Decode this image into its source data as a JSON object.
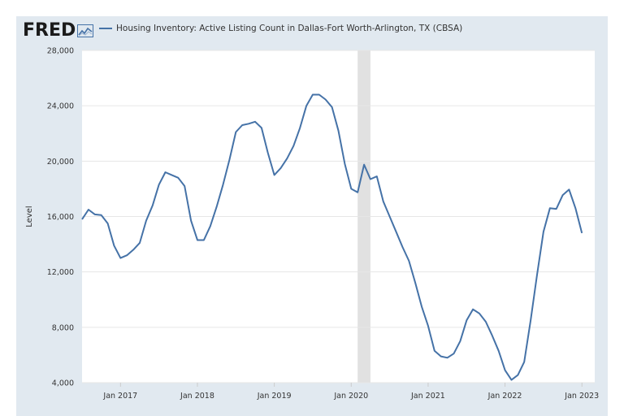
{
  "header": {
    "logo_text": "FRED",
    "logo_icon": "chart-line-icon",
    "legend_label": "Housing Inventory: Active Listing Count in Dallas-Fort Worth-Arlington, TX (CBSA)"
  },
  "colors": {
    "line": "#4572a7",
    "recession": "#e1e1e1",
    "frame": "#e1e9f0",
    "grid": "#e6e6e6"
  },
  "chart_data": {
    "type": "line",
    "title": "Housing Inventory: Active Listing Count in Dallas-Fort Worth-Arlington, TX (CBSA)",
    "xlabel": "",
    "ylabel": "Level",
    "ylim": [
      4000,
      28000
    ],
    "xlim": [
      "2016-07-01",
      "2023-03-01"
    ],
    "y_ticks": [
      "4,000",
      "8,000",
      "12,000",
      "16,000",
      "20,000",
      "24,000",
      "28,000"
    ],
    "y_tick_values": [
      4000,
      8000,
      12000,
      16000,
      20000,
      24000,
      28000
    ],
    "x_ticks": [
      {
        "date": "2017-01-01",
        "label": "Jan 2017"
      },
      {
        "date": "2018-01-01",
        "label": "Jan 2018"
      },
      {
        "date": "2019-01-01",
        "label": "Jan 2019"
      },
      {
        "date": "2020-01-01",
        "label": "Jan 2020"
      },
      {
        "date": "2021-01-01",
        "label": "Jan 2021"
      },
      {
        "date": "2022-01-01",
        "label": "Jan 2022"
      },
      {
        "date": "2023-01-01",
        "label": "Jan 2023"
      }
    ],
    "recession": {
      "start": "2020-02-01",
      "end": "2020-04-01"
    },
    "grid": true,
    "legend_position": "top",
    "series": [
      {
        "name": "Housing Inventory: Active Listing Count in Dallas-Fort Worth-Arlington, TX (CBSA)",
        "x": [
          "2016-07-01",
          "2016-08-01",
          "2016-09-01",
          "2016-10-01",
          "2016-11-01",
          "2016-12-01",
          "2017-01-01",
          "2017-02-01",
          "2017-03-01",
          "2017-04-01",
          "2017-05-01",
          "2017-06-01",
          "2017-07-01",
          "2017-08-01",
          "2017-09-01",
          "2017-10-01",
          "2017-11-01",
          "2017-12-01",
          "2018-01-01",
          "2018-02-01",
          "2018-03-01",
          "2018-04-01",
          "2018-05-01",
          "2018-06-01",
          "2018-07-01",
          "2018-08-01",
          "2018-09-01",
          "2018-10-01",
          "2018-11-01",
          "2018-12-01",
          "2019-01-01",
          "2019-02-01",
          "2019-03-01",
          "2019-04-01",
          "2019-05-01",
          "2019-06-01",
          "2019-07-01",
          "2019-08-01",
          "2019-09-01",
          "2019-10-01",
          "2019-11-01",
          "2019-12-01",
          "2020-01-01",
          "2020-02-01",
          "2020-03-01",
          "2020-04-01",
          "2020-05-01",
          "2020-06-01",
          "2020-07-01",
          "2020-08-01",
          "2020-09-01",
          "2020-10-01",
          "2020-11-01",
          "2020-12-01",
          "2021-01-01",
          "2021-02-01",
          "2021-03-01",
          "2021-04-01",
          "2021-05-01",
          "2021-06-01",
          "2021-07-01",
          "2021-08-01",
          "2021-09-01",
          "2021-10-01",
          "2021-11-01",
          "2021-12-01",
          "2022-01-01",
          "2022-02-01",
          "2022-03-01",
          "2022-04-01",
          "2022-05-01",
          "2022-06-01",
          "2022-07-01",
          "2022-08-01",
          "2022-09-01",
          "2022-10-01",
          "2022-11-01",
          "2022-12-01",
          "2023-01-01",
          "2023-02-01",
          "2023-03-01"
        ],
        "y": [
          15800,
          16500,
          16150,
          16100,
          15500,
          13900,
          13000,
          13200,
          13600,
          14100,
          15700,
          16800,
          18300,
          19200,
          19000,
          18800,
          18200,
          15700,
          14300,
          14300,
          15300,
          16700,
          18300,
          20100,
          22100,
          22600,
          22700,
          22850,
          22400,
          20600,
          19000,
          19500,
          20200,
          21100,
          22400,
          24000,
          24800,
          24800,
          24450,
          23900,
          22200,
          19800,
          18000,
          17750,
          19750,
          18700,
          18900,
          17100,
          16000,
          14900,
          13800,
          12800,
          11200,
          9500,
          8100,
          6300,
          5900,
          5800,
          6100,
          7000,
          8500,
          9300,
          9000,
          8400,
          7400,
          6300,
          4900,
          4200,
          4550,
          5500,
          8500,
          11800,
          14900,
          16600,
          16550,
          17550,
          17950,
          16600,
          14800,
          null,
          null
        ]
      }
    ]
  }
}
